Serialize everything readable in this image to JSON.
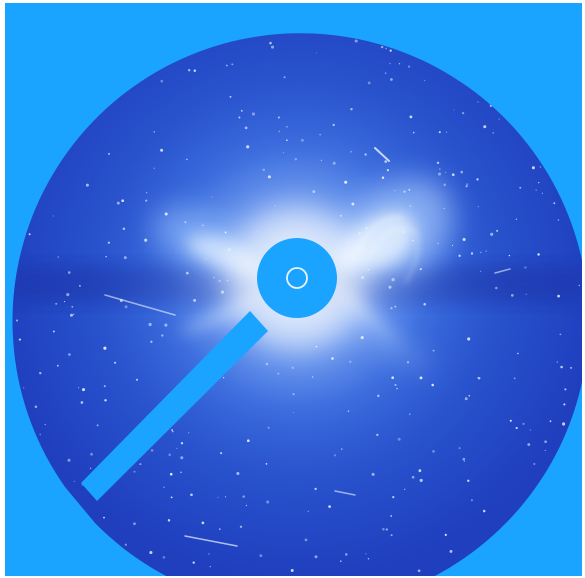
{
  "image": {
    "subject": "coronagraph-view",
    "colors": {
      "frame_background": "#1aa3ff",
      "field_deep": "#1f3fbf",
      "field_mid": "#2f5fd6",
      "corona_bright": "#eaf6ff",
      "occulter": "#1aa3ff",
      "sun_outline": "#e8f4ff"
    }
  }
}
